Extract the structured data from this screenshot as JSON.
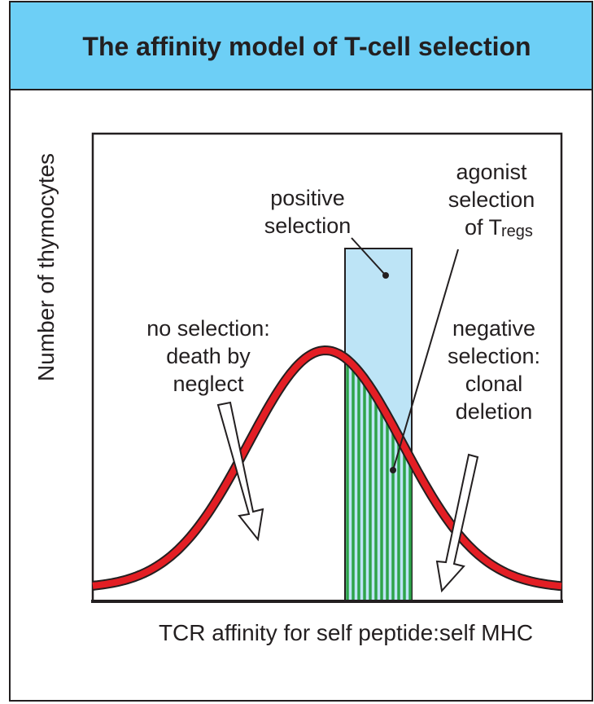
{
  "title": "The affinity model of T-cell selection",
  "y_axis_label": "Number of thymocytes",
  "x_axis_label": "TCR affinity for self peptide:self MHC",
  "labels": {
    "positive": [
      "positive",
      "selection"
    ],
    "agonist": [
      "agonist",
      "selection",
      "of T"
    ],
    "agonist_subscript": "regs",
    "no_selection": [
      "no selection:",
      "death by",
      "neglect"
    ],
    "negative": [
      "negative",
      "selection:",
      "clonal",
      "deletion"
    ]
  }
}
